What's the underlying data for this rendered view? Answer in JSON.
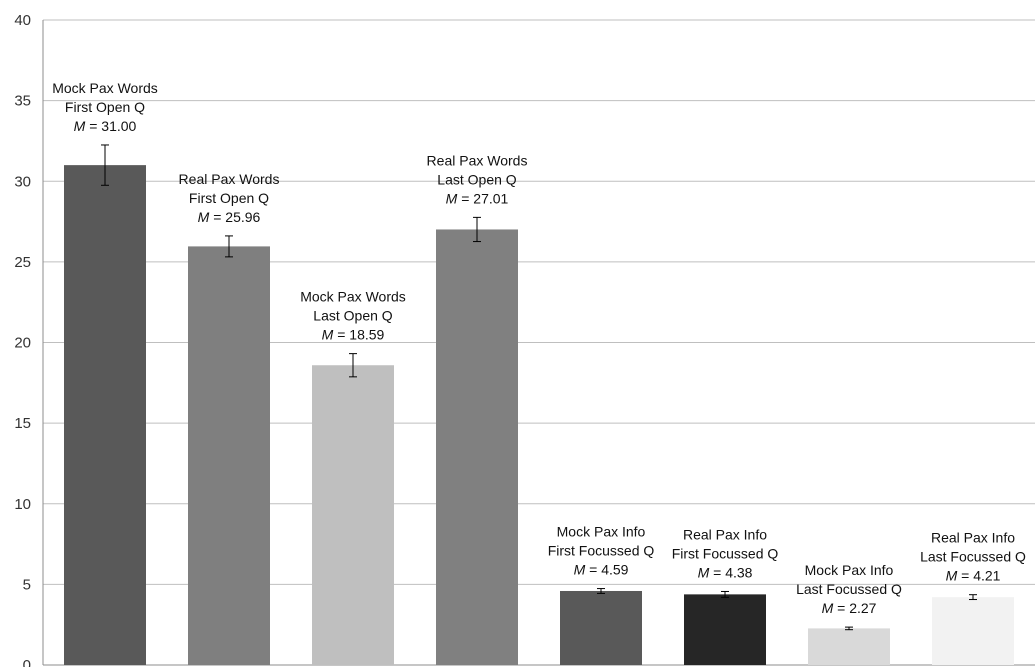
{
  "chart_data": {
    "type": "bar",
    "title": "",
    "xlabel": "",
    "ylabel": "",
    "ylim": [
      0,
      40
    ],
    "yticks": [
      0,
      5,
      10,
      15,
      20,
      25,
      30,
      35,
      40
    ],
    "grid": true,
    "legend": "none",
    "bars": [
      {
        "label_lines": [
          "Mock Pax Words",
          "First Open Q"
        ],
        "m_label": "31.00",
        "value": 31.0,
        "error": 1.25,
        "color": "#595959"
      },
      {
        "label_lines": [
          "Real Pax Words",
          "First Open Q"
        ],
        "m_label": "25.96",
        "value": 25.96,
        "error": 0.65,
        "color": "#7f7f7f"
      },
      {
        "label_lines": [
          "Mock Pax Words",
          "Last Open Q"
        ],
        "m_label": "18.59",
        "value": 18.59,
        "error": 0.72,
        "color": "#bfbfbf"
      },
      {
        "label_lines": [
          "Real Pax Words",
          "Last Open Q"
        ],
        "m_label": "27.01",
        "value": 27.01,
        "error": 0.75,
        "color": "#808080"
      },
      {
        "label_lines": [
          "Mock Pax Info",
          "First Focussed Q"
        ],
        "m_label": "4.59",
        "value": 4.59,
        "error": 0.15,
        "color": "#595959"
      },
      {
        "label_lines": [
          "Real Pax Info",
          "First Focussed Q"
        ],
        "m_label": "4.38",
        "value": 4.38,
        "error": 0.18,
        "color": "#262626"
      },
      {
        "label_lines": [
          "Mock Pax Info",
          "Last Focussed Q"
        ],
        "m_label": "2.27",
        "value": 2.27,
        "error": 0.08,
        "color": "#d9d9d9"
      },
      {
        "label_lines": [
          "Real Pax Info",
          "Last Focussed Q"
        ],
        "m_label": "4.21",
        "value": 4.21,
        "error": 0.15,
        "color": "#f2f2f2"
      }
    ]
  }
}
